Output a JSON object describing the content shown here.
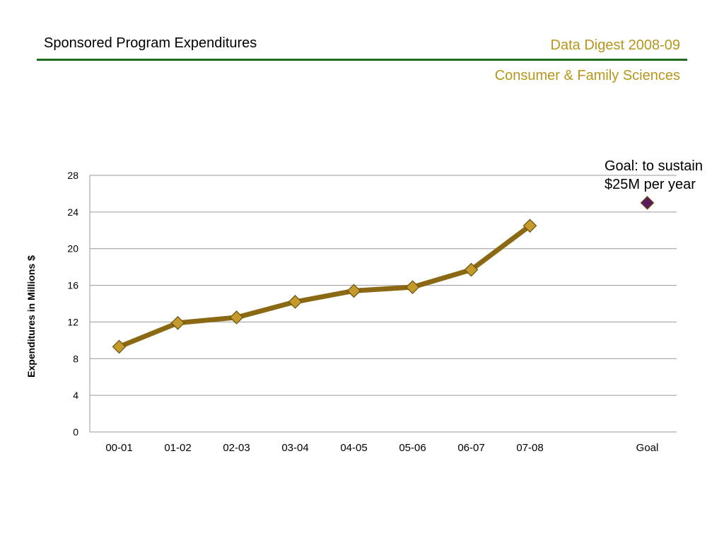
{
  "header": {
    "title": "Sponsored Program Expenditures",
    "digest": "Data Digest 2008-09",
    "college": "Consumer & Family Sciences"
  },
  "annotation": {
    "line1": "Goal: to sustain",
    "line2": "$25M per year"
  },
  "colors": {
    "rule": "#1f6b1f",
    "accent_text": "#b8961c",
    "series_line": "#8b6914",
    "marker_fill": "#c49a2a",
    "goal_marker": "#5a1a5e",
    "gridline": "#999999"
  },
  "chart_data": {
    "type": "line",
    "ylabel": "Expenditures  in Millions $",
    "xlabel": "",
    "ylim": [
      0,
      28
    ],
    "yticks": [
      0,
      4,
      8,
      12,
      16,
      20,
      24,
      28
    ],
    "categories": [
      "00-01",
      "01-02",
      "02-03",
      "03-04",
      "04-05",
      "05-06",
      "06-07",
      "07-08",
      "",
      "Goal"
    ],
    "series": [
      {
        "values": [
          9.3,
          11.9,
          12.5,
          14.2,
          15.4,
          15.8,
          17.7,
          22.5,
          null,
          null
        ]
      }
    ],
    "goal": {
      "category": "Goal",
      "value": 25
    },
    "grid": true,
    "legend": "none"
  }
}
